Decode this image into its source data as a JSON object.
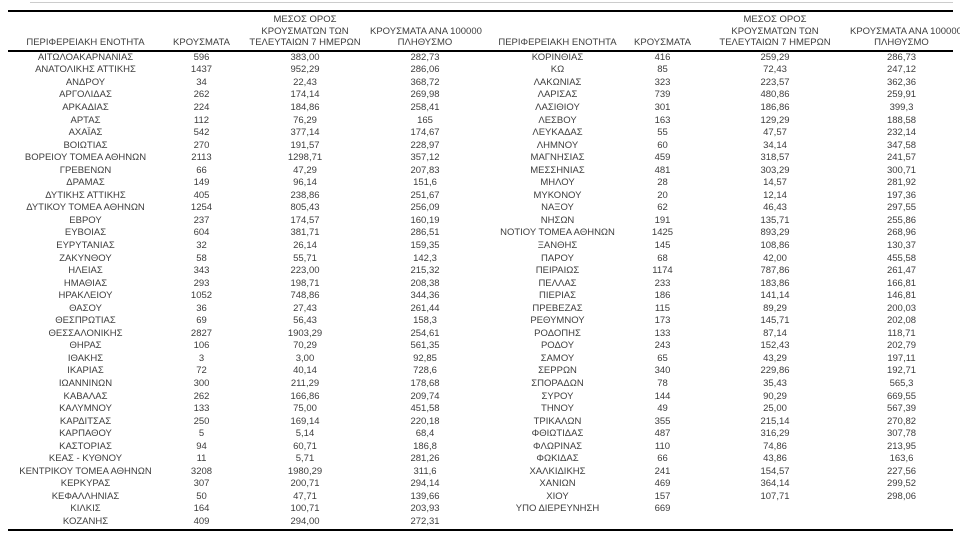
{
  "headers": {
    "region": "ΠΕΡΙΦΕΡΕΙΑΚΗ ΕΝΟΤΗΤΑ",
    "cases": "ΚΡΟΥΣΜΑΤΑ",
    "avg7_lines": [
      "ΜΕΣΟΣ ΟΡΟΣ",
      "ΚΡΟΥΣΜΑΤΩΝ ΤΩΝ",
      "ΤΕΛΕΥΤΑΙΩΝ 7 ΗΜΕΡΩΝ"
    ],
    "per100k_lines": [
      "ΚΡΟΥΣΜΑΤΑ ΑΝΑ 100000",
      "ΠΛΗΘΥΣΜΟ"
    ]
  },
  "left_rows": [
    [
      "ΑΙΤΩΛΟΑΚΑΡΝΑΝΙΑΣ",
      "596",
      "383,00",
      "282,73"
    ],
    [
      "ΑΝΑΤΟΛΙΚΗΣ ΑΤΤΙΚΗΣ",
      "1437",
      "952,29",
      "286,06"
    ],
    [
      "ΑΝΔΡΟΥ",
      "34",
      "22,43",
      "368,72"
    ],
    [
      "ΑΡΓΟΛΙΔΑΣ",
      "262",
      "174,14",
      "269,98"
    ],
    [
      "ΑΡΚΑΔΙΑΣ",
      "224",
      "184,86",
      "258,41"
    ],
    [
      "ΑΡΤΑΣ",
      "112",
      "76,29",
      "165"
    ],
    [
      "ΑΧΑΪΑΣ",
      "542",
      "377,14",
      "174,67"
    ],
    [
      "ΒΟΙΩΤΙΑΣ",
      "270",
      "191,57",
      "228,97"
    ],
    [
      "ΒΟΡΕΙΟΥ ΤΟΜΕΑ ΑΘΗΝΩΝ",
      "2113",
      "1298,71",
      "357,12"
    ],
    [
      "ΓΡΕΒΕΝΩΝ",
      "66",
      "47,29",
      "207,83"
    ],
    [
      "ΔΡΑΜΑΣ",
      "149",
      "96,14",
      "151,6"
    ],
    [
      "ΔΥΤΙΚΗΣ ΑΤΤΙΚΗΣ",
      "405",
      "238,86",
      "251,67"
    ],
    [
      "ΔΥΤΙΚΟΥ ΤΟΜΕΑ ΑΘΗΝΩΝ",
      "1254",
      "805,43",
      "256,09"
    ],
    [
      "ΕΒΡΟΥ",
      "237",
      "174,57",
      "160,19"
    ],
    [
      "ΕΥΒΟΙΑΣ",
      "604",
      "381,71",
      "286,51"
    ],
    [
      "ΕΥΡΥΤΑΝΙΑΣ",
      "32",
      "26,14",
      "159,35"
    ],
    [
      "ΖΑΚΥΝΘΟΥ",
      "58",
      "55,71",
      "142,3"
    ],
    [
      "ΗΛΕΙΑΣ",
      "343",
      "223,00",
      "215,32"
    ],
    [
      "ΗΜΑΘΙΑΣ",
      "293",
      "198,71",
      "208,38"
    ],
    [
      "ΗΡΑΚΛΕΙΟΥ",
      "1052",
      "748,86",
      "344,36"
    ],
    [
      "ΘΑΣΟΥ",
      "36",
      "27,43",
      "261,44"
    ],
    [
      "ΘΕΣΠΡΩΤΙΑΣ",
      "69",
      "56,43",
      "158,3"
    ],
    [
      "ΘΕΣΣΑΛΟΝΙΚΗΣ",
      "2827",
      "1903,29",
      "254,61"
    ],
    [
      "ΘΗΡΑΣ",
      "106",
      "70,29",
      "561,35"
    ],
    [
      "ΙΘΑΚΗΣ",
      "3",
      "3,00",
      "92,85"
    ],
    [
      "ΙΚΑΡΙΑΣ",
      "72",
      "40,14",
      "728,6"
    ],
    [
      "ΙΩΑΝΝΙΝΩΝ",
      "300",
      "211,29",
      "178,68"
    ],
    [
      "ΚΑΒΑΛΑΣ",
      "262",
      "166,86",
      "209,74"
    ],
    [
      "ΚΑΛΥΜΝΟΥ",
      "133",
      "75,00",
      "451,58"
    ],
    [
      "ΚΑΡΔΙΤΣΑΣ",
      "250",
      "169,14",
      "220,18"
    ],
    [
      "ΚΑΡΠΑΘΟΥ",
      "5",
      "5,14",
      "68,4"
    ],
    [
      "ΚΑΣΤΟΡΙΑΣ",
      "94",
      "60,71",
      "186,8"
    ],
    [
      "ΚΕΑΣ - ΚΥΘΝΟΥ",
      "11",
      "5,71",
      "281,26"
    ],
    [
      "ΚΕΝΤΡΙΚΟΥ ΤΟΜΕΑ ΑΘΗΝΩΝ",
      "3208",
      "1980,29",
      "311,6"
    ],
    [
      "ΚΕΡΚΥΡΑΣ",
      "307",
      "200,71",
      "294,14"
    ],
    [
      "ΚΕΦΑΛΛΗΝΙΑΣ",
      "50",
      "47,71",
      "139,66"
    ],
    [
      "ΚΙΛΚΙΣ",
      "164",
      "100,71",
      "203,93"
    ],
    [
      "ΚΟΖΑΝΗΣ",
      "409",
      "294,00",
      "272,31"
    ]
  ],
  "right_rows": [
    [
      "ΚΟΡΙΝΘΙΑΣ",
      "416",
      "259,29",
      "286,73"
    ],
    [
      "ΚΩ",
      "85",
      "72,43",
      "247,12"
    ],
    [
      "ΛΑΚΩΝΙΑΣ",
      "323",
      "223,57",
      "362,36"
    ],
    [
      "ΛΑΡΙΣΑΣ",
      "739",
      "480,86",
      "259,91"
    ],
    [
      "ΛΑΣΙΘΙΟΥ",
      "301",
      "186,86",
      "399,3"
    ],
    [
      "ΛΕΣΒΟΥ",
      "163",
      "129,29",
      "188,58"
    ],
    [
      "ΛΕΥΚΑΔΑΣ",
      "55",
      "47,57",
      "232,14"
    ],
    [
      "ΛΗΜΝΟΥ",
      "60",
      "34,14",
      "347,58"
    ],
    [
      "ΜΑΓΝΗΣΙΑΣ",
      "459",
      "318,57",
      "241,57"
    ],
    [
      "ΜΕΣΣΗΝΙΑΣ",
      "481",
      "303,29",
      "300,71"
    ],
    [
      "ΜΗΛΟΥ",
      "28",
      "14,57",
      "281,92"
    ],
    [
      "ΜΥΚΟΝΟΥ",
      "20",
      "12,14",
      "197,36"
    ],
    [
      "ΝΑΞΟΥ",
      "62",
      "46,43",
      "297,55"
    ],
    [
      "ΝΗΣΩΝ",
      "191",
      "135,71",
      "255,86"
    ],
    [
      "ΝΟΤΙΟΥ ΤΟΜΕΑ ΑΘΗΝΩΝ",
      "1425",
      "893,29",
      "268,96"
    ],
    [
      "ΞΑΝΘΗΣ",
      "145",
      "108,86",
      "130,37"
    ],
    [
      "ΠΑΡΟΥ",
      "68",
      "42,00",
      "455,58"
    ],
    [
      "ΠΕΙΡΑΙΩΣ",
      "1174",
      "787,86",
      "261,47"
    ],
    [
      "ΠΕΛΛΑΣ",
      "233",
      "183,86",
      "166,81"
    ],
    [
      "ΠΙΕΡΙΑΣ",
      "186",
      "141,14",
      "146,81"
    ],
    [
      "ΠΡΕΒΕΖΑΣ",
      "115",
      "89,29",
      "200,03"
    ],
    [
      "ΡΕΘΥΜΝΟΥ",
      "173",
      "145,71",
      "202,08"
    ],
    [
      "ΡΟΔΟΠΗΣ",
      "133",
      "87,14",
      "118,71"
    ],
    [
      "ΡΟΔΟΥ",
      "243",
      "152,43",
      "202,79"
    ],
    [
      "ΣΑΜΟΥ",
      "65",
      "43,29",
      "197,11"
    ],
    [
      "ΣΕΡΡΩΝ",
      "340",
      "229,86",
      "192,71"
    ],
    [
      "ΣΠΟΡΑΔΩΝ",
      "78",
      "35,43",
      "565,3"
    ],
    [
      "ΣΥΡΟΥ",
      "144",
      "90,29",
      "669,55"
    ],
    [
      "ΤΗΝΟΥ",
      "49",
      "25,00",
      "567,39"
    ],
    [
      "ΤΡΙΚΑΛΩΝ",
      "355",
      "215,14",
      "270,82"
    ],
    [
      "ΦΘΙΩΤΙΔΑΣ",
      "487",
      "316,29",
      "307,78"
    ],
    [
      "ΦΛΩΡΙΝΑΣ",
      "110",
      "74,86",
      "213,95"
    ],
    [
      "ΦΩΚΙΔΑΣ",
      "66",
      "43,86",
      "163,6"
    ],
    [
      "ΧΑΛΚΙΔΙΚΗΣ",
      "241",
      "154,57",
      "227,56"
    ],
    [
      "ΧΑΝΙΩΝ",
      "469",
      "364,14",
      "299,52"
    ],
    [
      "ΧΙΟΥ",
      "157",
      "107,71",
      "298,06"
    ],
    [
      "ΥΠΟ ΔΙΕΡΕΥΝΗΣΗ",
      "669",
      "",
      ""
    ]
  ],
  "colors": {
    "text": "#3d3d3d",
    "border": "#000000",
    "background": "#ffffff"
  }
}
